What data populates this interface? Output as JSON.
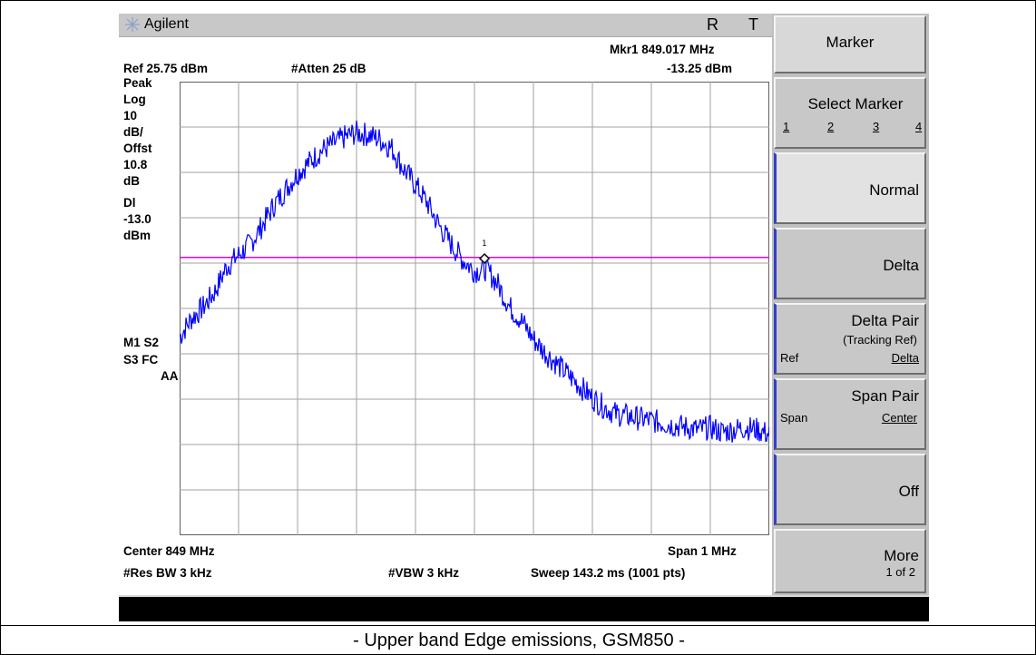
{
  "instrument": {
    "brand": "Agilent",
    "status_r": "R",
    "status_t": "T"
  },
  "header": {
    "marker_readout": "Mkr1  849.017 MHz",
    "marker_level": "-13.25 dBm",
    "ref_level": "Ref 25.75 dBm",
    "atten": "#Atten 25 dB"
  },
  "left_annotations": [
    "Peak",
    "Log",
    "10",
    "dB/",
    "Offst",
    "10.8",
    "dB",
    "Dl",
    "-13.0",
    "dBm"
  ],
  "trace_annotations": [
    "M1  S2",
    "S3  FC",
    "AA"
  ],
  "footer": {
    "center": "Center 849 MHz",
    "span": "Span 1 MHz",
    "rbw": "#Res BW 3 kHz",
    "vbw": "#VBW 3 kHz",
    "sweep": "Sweep 143.2 ms (1001 pts)"
  },
  "softkeys": {
    "title": "Marker",
    "select_marker": "Select Marker",
    "select_options": [
      "1",
      "2",
      "3",
      "4"
    ],
    "normal": "Normal",
    "delta": "Delta",
    "delta_pair": "Delta Pair",
    "delta_pair_sub": "(Tracking Ref)",
    "delta_pair_left": "Ref",
    "delta_pair_right": "Delta",
    "span_pair": "Span Pair",
    "span_pair_left": "Span",
    "span_pair_right": "Center",
    "off": "Off",
    "more": "More",
    "more_sub": "1 of 2"
  },
  "caption": "- Upper band Edge emissions, GSM850 -",
  "colors": {
    "trace": "#0000ff",
    "display_line": "#e000e0",
    "grid": "#a0a0a0",
    "softkey_accent": "#3340c8"
  },
  "chart_data": {
    "type": "line",
    "title": "",
    "x_unit": "MHz",
    "y_unit": "dBm",
    "xlim": [
      848.5,
      849.5
    ],
    "ylim": [
      -74.25,
      25.75
    ],
    "grid": true,
    "display_line_dbm": -13.0,
    "marker": {
      "label": "1",
      "x": 849.017,
      "y": -13.25
    },
    "series": [
      {
        "x": [
          848.5,
          848.52,
          848.54,
          848.56,
          848.58,
          848.6,
          848.62,
          848.64,
          848.66,
          848.68,
          848.7,
          848.72,
          848.74,
          848.76,
          848.78,
          848.8,
          848.82,
          848.84,
          848.86,
          848.88,
          848.9,
          848.92,
          848.94,
          848.96,
          848.98,
          849.0,
          849.02,
          849.04,
          849.06,
          849.08,
          849.1,
          849.12,
          849.14,
          849.16,
          849.18,
          849.2,
          849.22,
          849.24,
          849.26,
          849.28,
          849.3,
          849.32,
          849.34,
          849.36,
          849.38,
          849.4,
          849.42,
          849.44,
          849.46,
          849.48,
          849.5
        ],
        "values": [
          -30.5,
          -26.5,
          -24.0,
          -20.5,
          -15.0,
          -12.5,
          -10.0,
          -6.0,
          -1.5,
          2.0,
          5.5,
          8.0,
          10.5,
          12.0,
          13.5,
          14.5,
          14.0,
          13.0,
          11.0,
          6.5,
          3.0,
          -1.0,
          -6.0,
          -10.0,
          -13.5,
          -16.0,
          -15.5,
          -19.0,
          -24.0,
          -27.0,
          -31.0,
          -34.0,
          -36.5,
          -39.0,
          -41.5,
          -44.0,
          -46.0,
          -47.5,
          -48.0,
          -48.5,
          -49.0,
          -49.5,
          -50.0,
          -50.5,
          -51.0,
          -50.5,
          -51.5,
          -51.0,
          -50.5,
          -51.0,
          -52.0
        ]
      }
    ]
  }
}
